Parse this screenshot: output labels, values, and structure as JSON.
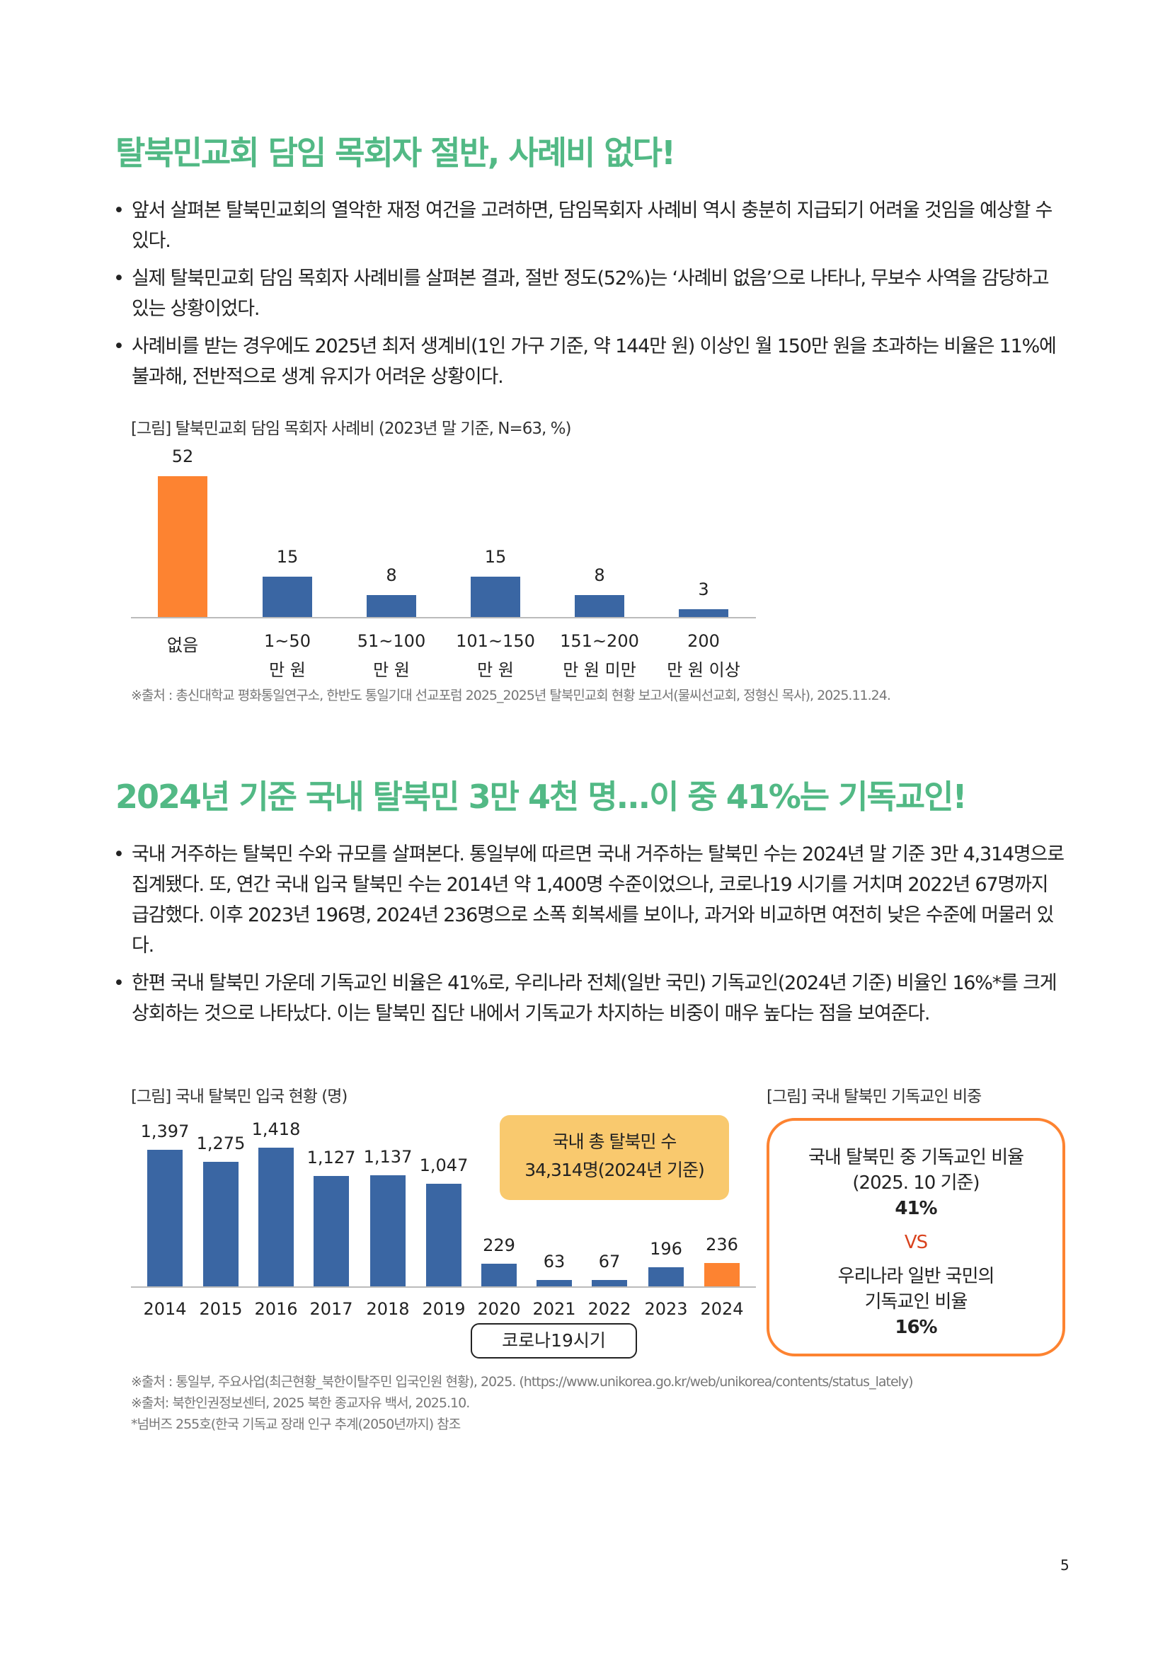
{
  "section1": {
    "title": "탈북민교회 담임 목회자 절반, 사례비 없다!",
    "bullets": [
      "앞서 살펴본 탈북민교회의 열악한 재정 여건을 고려하면, 담임목회자 사례비 역시 충분히 지급되기 어려울 것임을 예상할 수 있다.",
      "실제 탈북민교회 담임 목회자 사례비를 살펴본 결과, 절반 정도(52%)는 ‘사례비 없음’으로 나타나, 무보수 사역을 감당하고 있는 상황이었다.",
      "사례비를 받는 경우에도 2025년 최저 생계비(1인 가구 기준, 약 144만 원) 이상인 월 150만 원을 초과하는 비율은 11%에 불과해, 전반적으로 생계 유지가 어려운 상황이다."
    ],
    "source": "※출처 : 총신대학교 평화통일연구소, 한반도 통일기대 선교포럼 2025_2025년 탈북민교회 현황 보고서(물씨선교회, 정형신 목사), 2025.11.24."
  },
  "section2": {
    "title": "2024년 기준 국내 탈북민 3만 4천 명...이 중 41%는 기독교인!",
    "bullets": [
      "국내 거주하는 탈북민 수와 규모를 살펴본다. 통일부에 따르면 국내 거주하는 탈북민 수는 2024년 말 기준 3만 4,314명으로 집계됐다. 또, 연간 국내 입국 탈북민 수는 2014년 약 1,400명 수준이었으나, 코로나19 시기를 거치며 2022년 67명까지 급감했다. 이후 2023년 196명, 2024년 236명으로 소폭 회복세를 보이나, 과거와 비교하면 여전히 낮은 수준에 머물러 있다.",
      "한편 국내 탈북민 가운데 기독교인 비율은 41%로, 우리나라 전체(일반 국민) 기독교인(2024년 기준) 비율인 16%*를 크게 상회하는 것으로 나타났다. 이는 탈북민 집단 내에서 기독교가 차지하는 비중이 매우 높다는 점을 보여준다."
    ],
    "total_box": {
      "line1": "국내 총 탈북민 수",
      "line2": "34,314명(2024년 기준)"
    },
    "corona_label": "코로나19시기",
    "christian_caption": "[그림] 국내 탈북민 기독교인 비중",
    "christian_box": {
      "line1": "국내 탈북민 중 기독교인 비율",
      "line2": "(2025. 10 기준)",
      "value1": "41%",
      "vs": "VS",
      "line3": "우리나라 일반 국민의",
      "line4": "기독교인 비율",
      "value2": "16%"
    },
    "sources": [
      "※출처 : 통일부, 주요사업(최근현황_북한이탈주민 입국인원 현황), 2025. (https://www.unikorea.go.kr/web/unikorea/contents/status_lately)",
      "※출처: 북한인권정보센터, 2025 북한 종교자유 백서, 2025.10.",
      "*넘버즈 255호(한국 기독교 장래 인구 추계(2050년까지) 참조"
    ]
  },
  "colors": {
    "title": "#52b985",
    "bar": "#3a66a3",
    "highlight": "#fd8331",
    "yellow_box": "#f9c96e",
    "vs": "#d9431e"
  },
  "page_number": "5",
  "chart_data": [
    {
      "type": "bar",
      "title": "[그림] 탈북민교회 담임 목회자 사례비 (2023년 말 기준, N=63, %)",
      "categories": [
        [
          "없음",
          ""
        ],
        [
          "1~50",
          "만 원"
        ],
        [
          "51~100",
          "만 원"
        ],
        [
          "101~150",
          "만 원"
        ],
        [
          "151~200",
          "만 원 미만"
        ],
        [
          "200",
          "만 원 이상"
        ]
      ],
      "values": [
        52,
        15,
        8,
        15,
        8,
        3
      ],
      "highlight_index": 0,
      "ylim": [
        0,
        52
      ],
      "grid": false
    },
    {
      "type": "bar",
      "title": "[그림] 국내 탈북민 입국 현황 (명)",
      "categories": [
        "2014",
        "2015",
        "2016",
        "2017",
        "2018",
        "2019",
        "2020",
        "2021",
        "2022",
        "2023",
        "2024"
      ],
      "values": [
        1397,
        1275,
        1418,
        1127,
        1137,
        1047,
        229,
        63,
        67,
        196,
        236
      ],
      "value_labels": [
        "1,397",
        "1,275",
        "1,418",
        "1,127",
        "1,137",
        "1,047",
        "229",
        "63",
        "67",
        "196",
        "236"
      ],
      "highlight_index": 10,
      "ylim": [
        0,
        1418
      ],
      "grid": false
    }
  ]
}
